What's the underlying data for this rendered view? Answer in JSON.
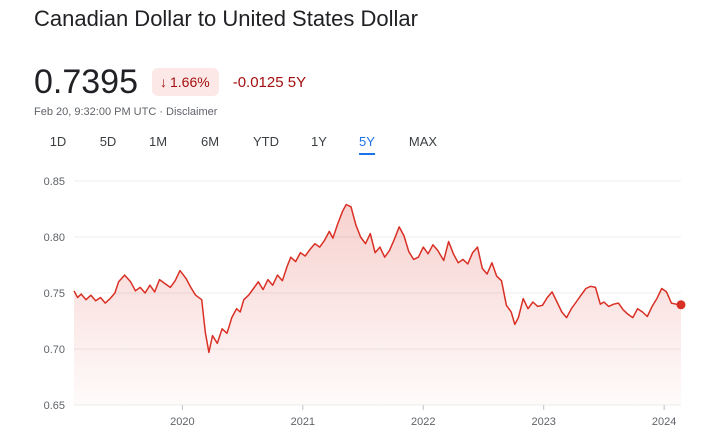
{
  "header": {
    "title": "Canadian Dollar to United States Dollar"
  },
  "quote": {
    "price": "0.7395",
    "change_percent": "1.66%",
    "change_abs": "-0.0125 5Y",
    "direction_icon": "arrow-down-icon",
    "timestamp": "Feb 20, 9:32:00 PM UTC · Disclaimer"
  },
  "tabs": [
    {
      "label": "1D",
      "active": false
    },
    {
      "label": "5D",
      "active": false
    },
    {
      "label": "1M",
      "active": false
    },
    {
      "label": "6M",
      "active": false
    },
    {
      "label": "YTD",
      "active": false
    },
    {
      "label": "1Y",
      "active": false
    },
    {
      "label": "5Y",
      "active": true
    },
    {
      "label": "MAX",
      "active": false
    }
  ],
  "colors": {
    "line": "#d93025",
    "negative_text": "#a50e0e",
    "negative_chip_bg": "#fce8e6",
    "active_tab": "#1a73e8",
    "grid": "#ececec"
  },
  "chart_data": {
    "type": "area",
    "title": "",
    "xlabel": "",
    "ylabel": "",
    "ylim": [
      0.65,
      0.85
    ],
    "yticks": [
      "0.85",
      "0.80",
      "0.75",
      "0.70",
      "0.65"
    ],
    "xticks": [
      "2020",
      "2021",
      "2022",
      "2023",
      "2024"
    ],
    "xlim": [
      2019.1,
      2024.14
    ],
    "grid": true,
    "series": [
      {
        "points": [
          [
            2019.1,
            0.752
          ],
          [
            2019.13,
            0.746
          ],
          [
            2019.16,
            0.749
          ],
          [
            2019.2,
            0.744
          ],
          [
            2019.24,
            0.748
          ],
          [
            2019.28,
            0.743
          ],
          [
            2019.32,
            0.746
          ],
          [
            2019.36,
            0.741
          ],
          [
            2019.4,
            0.745
          ],
          [
            2019.44,
            0.75
          ],
          [
            2019.47,
            0.76
          ],
          [
            2019.52,
            0.766
          ],
          [
            2019.57,
            0.76
          ],
          [
            2019.61,
            0.752
          ],
          [
            2019.65,
            0.755
          ],
          [
            2019.69,
            0.75
          ],
          [
            2019.73,
            0.757
          ],
          [
            2019.77,
            0.751
          ],
          [
            2019.81,
            0.762
          ],
          [
            2019.86,
            0.758
          ],
          [
            2019.9,
            0.755
          ],
          [
            2019.94,
            0.761
          ],
          [
            2019.98,
            0.77
          ],
          [
            2020.03,
            0.763
          ],
          [
            2020.07,
            0.755
          ],
          [
            2020.11,
            0.748
          ],
          [
            2020.16,
            0.744
          ],
          [
            2020.19,
            0.715
          ],
          [
            2020.22,
            0.697
          ],
          [
            2020.25,
            0.712
          ],
          [
            2020.29,
            0.705
          ],
          [
            2020.33,
            0.718
          ],
          [
            2020.37,
            0.714
          ],
          [
            2020.41,
            0.728
          ],
          [
            2020.45,
            0.736
          ],
          [
            2020.48,
            0.733
          ],
          [
            2020.51,
            0.744
          ],
          [
            2020.55,
            0.748
          ],
          [
            2020.59,
            0.754
          ],
          [
            2020.63,
            0.76
          ],
          [
            2020.67,
            0.753
          ],
          [
            2020.71,
            0.762
          ],
          [
            2020.75,
            0.757
          ],
          [
            2020.79,
            0.766
          ],
          [
            2020.83,
            0.761
          ],
          [
            2020.87,
            0.774
          ],
          [
            2020.9,
            0.782
          ],
          [
            2020.94,
            0.778
          ],
          [
            2020.98,
            0.786
          ],
          [
            2021.02,
            0.783
          ],
          [
            2021.06,
            0.789
          ],
          [
            2021.1,
            0.794
          ],
          [
            2021.14,
            0.791
          ],
          [
            2021.18,
            0.797
          ],
          [
            2021.22,
            0.805
          ],
          [
            2021.25,
            0.799
          ],
          [
            2021.29,
            0.812
          ],
          [
            2021.33,
            0.823
          ],
          [
            2021.36,
            0.829
          ],
          [
            2021.4,
            0.827
          ],
          [
            2021.44,
            0.811
          ],
          [
            2021.48,
            0.8
          ],
          [
            2021.52,
            0.794
          ],
          [
            2021.56,
            0.803
          ],
          [
            2021.6,
            0.786
          ],
          [
            2021.64,
            0.791
          ],
          [
            2021.68,
            0.782
          ],
          [
            2021.72,
            0.788
          ],
          [
            2021.76,
            0.798
          ],
          [
            2021.8,
            0.809
          ],
          [
            2021.84,
            0.801
          ],
          [
            2021.88,
            0.787
          ],
          [
            2021.92,
            0.78
          ],
          [
            2021.96,
            0.782
          ],
          [
            2022.0,
            0.791
          ],
          [
            2022.04,
            0.785
          ],
          [
            2022.08,
            0.793
          ],
          [
            2022.12,
            0.788
          ],
          [
            2022.17,
            0.779
          ],
          [
            2022.21,
            0.796
          ],
          [
            2022.25,
            0.785
          ],
          [
            2022.29,
            0.777
          ],
          [
            2022.33,
            0.78
          ],
          [
            2022.37,
            0.776
          ],
          [
            2022.41,
            0.786
          ],
          [
            2022.45,
            0.791
          ],
          [
            2022.49,
            0.772
          ],
          [
            2022.53,
            0.767
          ],
          [
            2022.57,
            0.777
          ],
          [
            2022.61,
            0.765
          ],
          [
            2022.65,
            0.761
          ],
          [
            2022.69,
            0.739
          ],
          [
            2022.73,
            0.733
          ],
          [
            2022.76,
            0.722
          ],
          [
            2022.79,
            0.728
          ],
          [
            2022.83,
            0.745
          ],
          [
            2022.87,
            0.736
          ],
          [
            2022.91,
            0.742
          ],
          [
            2022.95,
            0.738
          ],
          [
            2022.99,
            0.739
          ],
          [
            2023.03,
            0.746
          ],
          [
            2023.07,
            0.751
          ],
          [
            2023.11,
            0.742
          ],
          [
            2023.15,
            0.733
          ],
          [
            2023.19,
            0.728
          ],
          [
            2023.23,
            0.736
          ],
          [
            2023.27,
            0.742
          ],
          [
            2023.31,
            0.748
          ],
          [
            2023.35,
            0.754
          ],
          [
            2023.39,
            0.756
          ],
          [
            2023.43,
            0.755
          ],
          [
            2023.47,
            0.74
          ],
          [
            2023.5,
            0.742
          ],
          [
            2023.54,
            0.738
          ],
          [
            2023.58,
            0.74
          ],
          [
            2023.62,
            0.741
          ],
          [
            2023.66,
            0.735
          ],
          [
            2023.7,
            0.731
          ],
          [
            2023.74,
            0.728
          ],
          [
            2023.78,
            0.736
          ],
          [
            2023.82,
            0.733
          ],
          [
            2023.86,
            0.729
          ],
          [
            2023.9,
            0.738
          ],
          [
            2023.94,
            0.745
          ],
          [
            2023.98,
            0.754
          ],
          [
            2024.02,
            0.751
          ],
          [
            2024.06,
            0.741
          ],
          [
            2024.1,
            0.74
          ],
          [
            2024.14,
            0.7395
          ]
        ]
      }
    ]
  }
}
